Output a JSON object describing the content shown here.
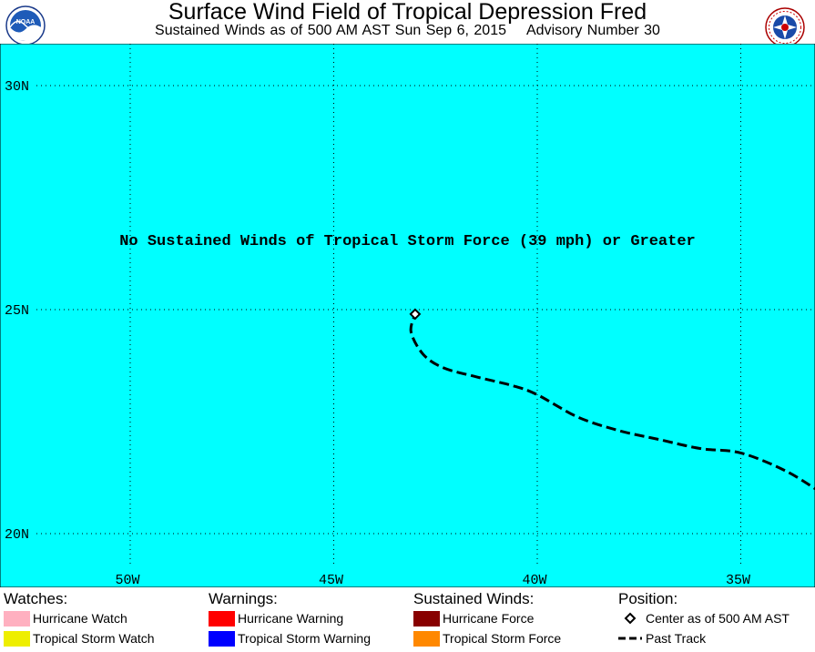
{
  "header": {
    "title": "Surface Wind Field of Tropical Depression Fred",
    "subtitle_left": "Sustained Winds as of 500 AM AST Sun Sep 6, 2015",
    "subtitle_right": "Advisory Number 30",
    "left_logo": "noaa-logo",
    "right_logo": "national-weather-service-logo"
  },
  "map": {
    "message": "No Sustained Winds of Tropical Storm Force (39 mph) or Greater",
    "ocean_color": "#00ffff",
    "lat_labels": [
      "30N",
      "25N",
      "20N"
    ],
    "lon_labels": [
      "50W",
      "45W",
      "40W",
      "35W"
    ],
    "center": {
      "lat": 24.9,
      "lon": 43.0
    },
    "past_track": [
      {
        "lat": 20.9,
        "lon": 33.0
      },
      {
        "lat": 21.4,
        "lon": 33.9
      },
      {
        "lat": 21.8,
        "lon": 35.0
      },
      {
        "lat": 21.9,
        "lon": 36.0
      },
      {
        "lat": 22.1,
        "lon": 37.0
      },
      {
        "lat": 22.3,
        "lon": 38.0
      },
      {
        "lat": 22.6,
        "lon": 39.0
      },
      {
        "lat": 23.1,
        "lon": 40.0
      },
      {
        "lat": 23.3,
        "lon": 40.6
      },
      {
        "lat": 23.5,
        "lon": 41.5
      },
      {
        "lat": 23.7,
        "lon": 42.3
      },
      {
        "lat": 24.0,
        "lon": 42.8
      },
      {
        "lat": 24.5,
        "lon": 43.1
      },
      {
        "lat": 24.9,
        "lon": 43.0
      }
    ]
  },
  "legend": {
    "watches": {
      "heading": "Watches:",
      "items": [
        {
          "label": "Hurricane Watch",
          "color": "#ffb0c0"
        },
        {
          "label": "Tropical Storm Watch",
          "color": "#eeee00"
        }
      ]
    },
    "warnings": {
      "heading": "Warnings:",
      "items": [
        {
          "label": "Hurricane Warning",
          "color": "#ff0000"
        },
        {
          "label": "Tropical Storm Warning",
          "color": "#0000ff"
        }
      ]
    },
    "winds": {
      "heading": "Sustained Winds:",
      "items": [
        {
          "label": "Hurricane Force",
          "color": "#880000"
        },
        {
          "label": "Tropical Storm Force",
          "color": "#ff8800"
        }
      ]
    },
    "position": {
      "heading": "Position:",
      "items": [
        {
          "label": "Center as of 500 AM AST",
          "icon": "diamond-icon"
        },
        {
          "label": "Past Track",
          "icon": "dashed-line-icon"
        }
      ]
    }
  }
}
